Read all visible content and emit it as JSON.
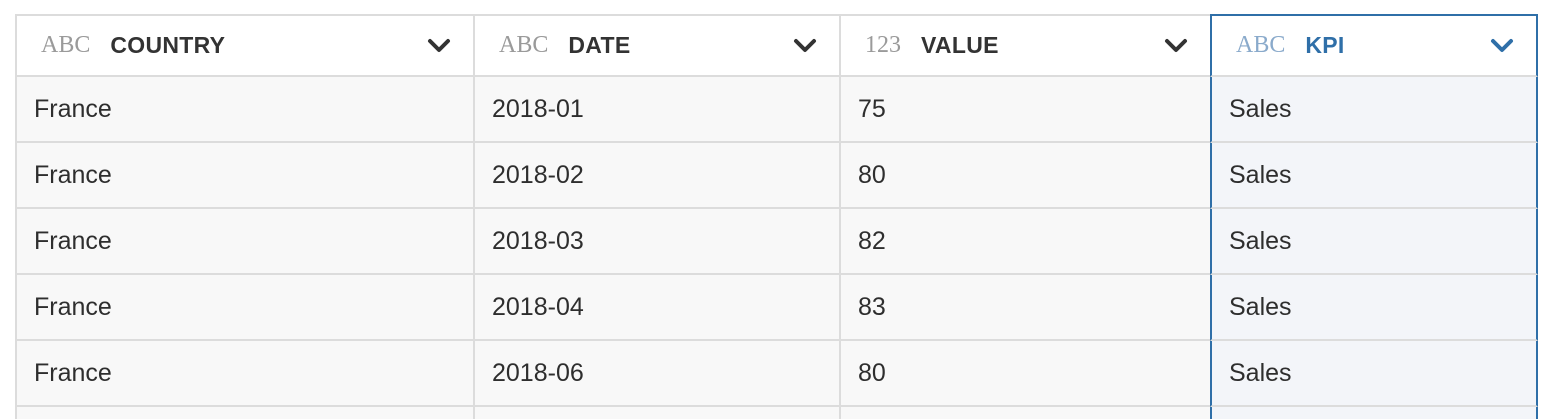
{
  "columns": [
    {
      "type": "ABC",
      "name": "COUNTRY"
    },
    {
      "type": "ABC",
      "name": "DATE"
    },
    {
      "type": "123",
      "name": "VALUE"
    },
    {
      "type": "ABC",
      "name": "KPI"
    }
  ],
  "rows": [
    [
      "France",
      "2018-01",
      "75",
      "Sales"
    ],
    [
      "France",
      "2018-02",
      "80",
      "Sales"
    ],
    [
      "France",
      "2018-03",
      "82",
      "Sales"
    ],
    [
      "France",
      "2018-04",
      "83",
      "Sales"
    ],
    [
      "France",
      "2018-06",
      "80",
      "Sales"
    ]
  ],
  "selected_column": "KPI",
  "colors": {
    "accent": "#2f6fa8",
    "header_text": "#333333",
    "type_label": "#9a9a9a",
    "row_background": "#f8f8f8",
    "selected_background": "#f3f5f9",
    "grid_line": "#dcdcdc"
  },
  "icons": {
    "column_menu": "chevron-down-icon"
  }
}
